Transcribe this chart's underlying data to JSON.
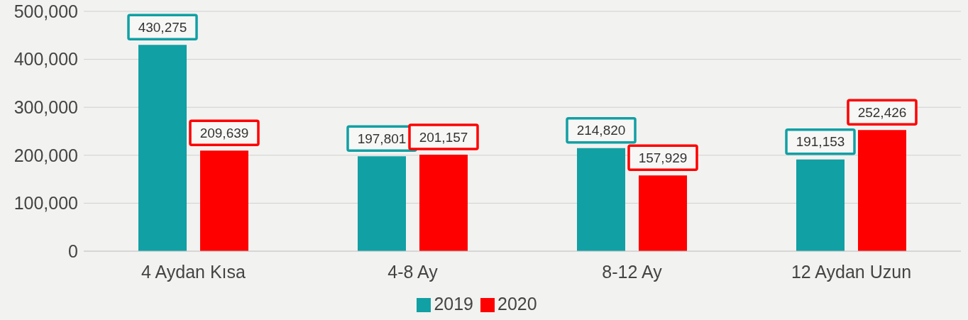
{
  "chart_data": {
    "type": "bar",
    "categories": [
      "4 Aydan Kısa",
      "4-8 Ay",
      "8-12 Ay",
      "12 Aydan Uzun"
    ],
    "series": [
      {
        "name": "2019",
        "color": "#11a0a4",
        "values": [
          430275,
          197801,
          214820,
          191153
        ],
        "value_labels": [
          "430,275",
          "197,801",
          "214,820",
          "191,153"
        ]
      },
      {
        "name": "2020",
        "color": "#ff0000",
        "values": [
          209639,
          201157,
          157929,
          252426
        ],
        "value_labels": [
          "209,639",
          "201,157",
          "157,929",
          "252,426"
        ]
      }
    ],
    "ylim": [
      0,
      500000
    ],
    "yticks": [
      0,
      {
        "value": 100000,
        "label": "100,000"
      },
      {
        "value": 200000,
        "label": "200,000"
      },
      {
        "value": 300000,
        "label": "300,000"
      },
      {
        "value": 400000,
        "label": "400,000"
      },
      {
        "value": 500000,
        "label": "500,000"
      }
    ],
    "grid": "y",
    "legend": "bottom"
  }
}
